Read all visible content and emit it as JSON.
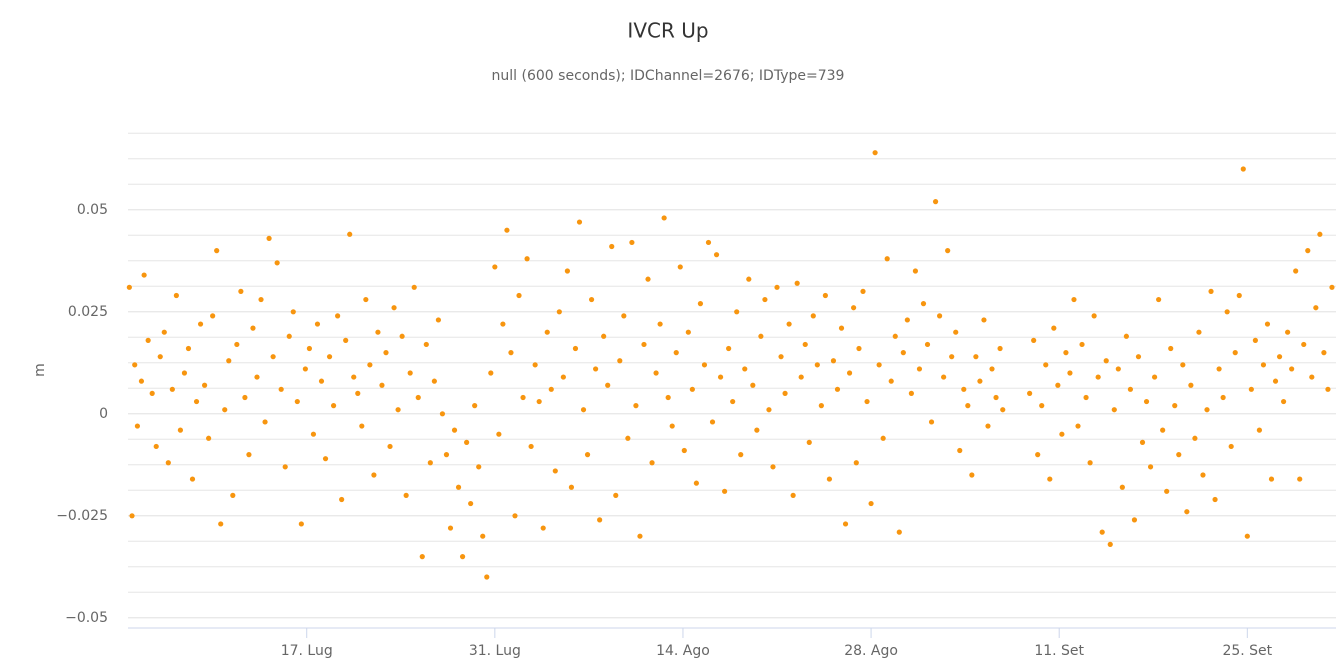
{
  "chart_data": {
    "type": "scatter",
    "title": "IVCR Up",
    "subtitle": "null (600 seconds); IDChannel=2676; IDType=739",
    "y_label": "m",
    "color": "#f7950f",
    "grid": true,
    "xlim": [
      -13.3,
      76.6
    ],
    "xticks": [
      {
        "value": 0,
        "label": "17. Lug"
      },
      {
        "value": 14,
        "label": "31. Lug"
      },
      {
        "value": 28,
        "label": "14. Ago"
      },
      {
        "value": 42,
        "label": "28. Ago"
      },
      {
        "value": 56,
        "label": "11. Set"
      },
      {
        "value": 70,
        "label": "25. Set"
      }
    ],
    "ylim": [
      -0.0525,
      0.0725
    ],
    "yticks": [
      {
        "value": -0.05,
        "label": "−0.05"
      },
      {
        "value": -0.025,
        "label": "−0.025"
      },
      0,
      0.025,
      0.05
    ],
    "y_minor_ticks": [
      -0.05,
      -0.04375,
      -0.0375,
      -0.03125,
      -0.025,
      -0.01875,
      -0.0125,
      -0.00625,
      0,
      0.00625,
      0.0125,
      0.01875,
      0.025,
      0.03125,
      0.0375,
      0.04375,
      0.05,
      0.05625,
      0.0625,
      0.06875
    ],
    "x": [
      -13.2,
      -13.0,
      -12.8,
      -12.6,
      -12.3,
      -12.1,
      -11.8,
      -11.5,
      -11.2,
      -10.9,
      -10.6,
      -10.3,
      -10.0,
      -9.7,
      -9.4,
      -9.1,
      -8.8,
      -8.5,
      -8.2,
      -7.9,
      -7.6,
      -7.3,
      -7.0,
      -6.7,
      -6.4,
      -6.1,
      -5.8,
      -5.5,
      -5.2,
      -4.9,
      -4.6,
      -4.3,
      -4.0,
      -3.7,
      -3.4,
      -3.1,
      -2.8,
      -2.5,
      -2.2,
      -1.9,
      -1.6,
      -1.3,
      -1.0,
      -0.7,
      -0.4,
      -0.1,
      0.2,
      0.5,
      0.8,
      1.1,
      1.4,
      1.7,
      2.0,
      2.3,
      2.6,
      2.9,
      3.2,
      3.5,
      3.8,
      4.1,
      4.4,
      4.7,
      5.0,
      5.3,
      5.6,
      5.9,
      6.2,
      6.5,
      6.8,
      7.1,
      7.4,
      7.7,
      8.0,
      8.3,
      8.6,
      8.9,
      9.2,
      9.5,
      9.8,
      10.1,
      10.4,
      10.7,
      11.0,
      11.3,
      11.6,
      11.9,
      12.2,
      12.5,
      12.8,
      13.1,
      13.4,
      13.7,
      14.0,
      14.3,
      14.6,
      14.9,
      15.2,
      15.5,
      15.8,
      16.1,
      16.4,
      16.7,
      17.0,
      17.3,
      17.6,
      17.9,
      18.2,
      18.5,
      18.8,
      19.1,
      19.4,
      19.7,
      20.0,
      20.3,
      20.6,
      20.9,
      21.2,
      21.5,
      21.8,
      22.1,
      22.4,
      22.7,
      23.0,
      23.3,
      23.6,
      23.9,
      24.2,
      24.5,
      24.8,
      25.1,
      25.4,
      25.7,
      26.0,
      26.3,
      26.6,
      26.9,
      27.2,
      27.5,
      27.8,
      28.1,
      28.4,
      28.7,
      29.0,
      29.3,
      29.6,
      29.9,
      30.2,
      30.5,
      30.8,
      31.1,
      31.4,
      31.7,
      32.0,
      32.3,
      32.6,
      32.9,
      33.2,
      33.5,
      33.8,
      34.1,
      34.4,
      34.7,
      35.0,
      35.3,
      35.6,
      35.9,
      36.2,
      36.5,
      36.8,
      37.1,
      37.4,
      37.7,
      38.0,
      38.3,
      38.6,
      38.9,
      39.2,
      39.5,
      39.8,
      40.1,
      40.4,
      40.7,
      40.9,
      41.1,
      41.4,
      41.7,
      42.0,
      42.3,
      42.6,
      42.9,
      43.2,
      43.5,
      43.8,
      44.1,
      44.4,
      44.7,
      45.0,
      45.3,
      45.6,
      45.9,
      46.2,
      46.5,
      46.8,
      47.1,
      47.4,
      47.7,
      48.0,
      48.3,
      48.6,
      48.9,
      49.2,
      49.5,
      49.8,
      50.1,
      50.4,
      50.7,
      51.0,
      51.3,
      51.6,
      51.8,
      53.8,
      54.1,
      54.4,
      54.7,
      55.0,
      55.3,
      55.6,
      55.9,
      56.2,
      56.5,
      56.8,
      57.1,
      57.4,
      57.7,
      58.0,
      58.3,
      58.6,
      58.9,
      59.2,
      59.5,
      59.8,
      60.1,
      60.4,
      60.7,
      61.0,
      61.3,
      61.6,
      61.9,
      62.2,
      62.5,
      62.8,
      63.1,
      63.4,
      63.7,
      64.0,
      64.3,
      64.6,
      64.9,
      65.2,
      65.5,
      65.8,
      66.1,
      66.4,
      66.7,
      67.0,
      67.3,
      67.6,
      67.9,
      68.2,
      68.5,
      68.8,
      69.1,
      69.4,
      69.7,
      70.0,
      70.3,
      70.6,
      70.9,
      71.2,
      71.5,
      71.8,
      72.1,
      72.4,
      72.7,
      73.0,
      73.3,
      73.6,
      73.9,
      74.2,
      74.5,
      74.8,
      75.1,
      75.4,
      75.7,
      76.0,
      76.3
    ],
    "values": [
      0.031,
      -0.025,
      0.012,
      -0.003,
      0.008,
      0.034,
      0.018,
      0.005,
      -0.008,
      0.014,
      0.02,
      -0.012,
      0.006,
      0.029,
      -0.004,
      0.01,
      0.016,
      -0.016,
      0.003,
      0.022,
      0.007,
      -0.006,
      0.024,
      0.04,
      -0.027,
      0.001,
      0.013,
      -0.02,
      0.017,
      0.03,
      0.004,
      -0.01,
      0.021,
      0.009,
      0.028,
      -0.002,
      0.043,
      0.014,
      0.037,
      0.006,
      -0.013,
      0.019,
      0.025,
      0.003,
      -0.027,
      0.011,
      0.016,
      -0.005,
      0.022,
      0.008,
      -0.011,
      0.014,
      0.002,
      0.024,
      -0.021,
      0.018,
      0.044,
      0.009,
      0.005,
      -0.003,
      0.028,
      0.012,
      -0.015,
      0.02,
      0.007,
      0.015,
      -0.008,
      0.026,
      0.001,
      0.019,
      -0.02,
      0.01,
      0.031,
      0.004,
      -0.035,
      0.017,
      -0.012,
      0.008,
      0.023,
      0.0,
      -0.01,
      -0.028,
      -0.004,
      -0.018,
      -0.035,
      -0.007,
      -0.022,
      0.002,
      -0.013,
      -0.03,
      -0.04,
      0.01,
      0.036,
      -0.005,
      0.022,
      0.045,
      0.015,
      -0.025,
      0.029,
      0.004,
      0.038,
      -0.008,
      0.012,
      0.003,
      -0.028,
      0.02,
      0.006,
      -0.014,
      0.025,
      0.009,
      0.035,
      -0.018,
      0.016,
      0.047,
      0.001,
      -0.01,
      0.028,
      0.011,
      -0.026,
      0.019,
      0.007,
      0.041,
      -0.02,
      0.013,
      0.024,
      -0.006,
      0.042,
      0.002,
      -0.03,
      0.017,
      0.033,
      -0.012,
      0.01,
      0.022,
      0.048,
      0.004,
      -0.003,
      0.015,
      0.036,
      -0.009,
      0.02,
      0.006,
      -0.017,
      0.027,
      0.012,
      0.042,
      -0.002,
      0.039,
      0.009,
      -0.019,
      0.016,
      0.003,
      0.025,
      -0.01,
      0.011,
      0.033,
      0.007,
      -0.004,
      0.019,
      0.028,
      0.001,
      -0.013,
      0.031,
      0.014,
      0.005,
      0.022,
      -0.02,
      0.032,
      0.009,
      0.017,
      -0.007,
      0.024,
      0.012,
      0.002,
      0.029,
      -0.016,
      0.013,
      0.006,
      0.021,
      -0.027,
      0.01,
      0.026,
      -0.012,
      0.016,
      0.03,
      0.003,
      -0.022,
      0.064,
      0.012,
      -0.006,
      0.038,
      0.008,
      0.019,
      -0.029,
      0.015,
      0.023,
      0.005,
      0.035,
      0.011,
      0.027,
      0.017,
      -0.002,
      0.052,
      0.024,
      0.009,
      0.04,
      0.014,
      0.02,
      -0.009,
      0.006,
      0.002,
      -0.015,
      0.014,
      0.008,
      0.023,
      -0.003,
      0.011,
      0.004,
      0.016,
      0.001,
      0.005,
      0.018,
      -0.01,
      0.002,
      0.012,
      -0.016,
      0.021,
      0.007,
      -0.005,
      0.015,
      0.01,
      0.028,
      -0.003,
      0.017,
      0.004,
      -0.012,
      0.024,
      0.009,
      -0.029,
      0.013,
      -0.032,
      0.001,
      0.011,
      -0.018,
      0.019,
      0.006,
      -0.026,
      0.014,
      -0.007,
      0.003,
      -0.013,
      0.009,
      0.028,
      -0.004,
      -0.019,
      0.016,
      0.002,
      -0.01,
      0.012,
      -0.024,
      0.007,
      -0.006,
      0.02,
      -0.015,
      0.001,
      0.03,
      -0.021,
      0.011,
      0.004,
      0.025,
      -0.008,
      0.015,
      0.029,
      0.06,
      -0.03,
      0.006,
      0.018,
      -0.004,
      0.012,
      0.022,
      -0.016,
      0.008,
      0.014,
      0.003,
      0.02,
      0.011,
      0.035,
      -0.016,
      0.017,
      0.04,
      0.009,
      0.026,
      0.044,
      0.015,
      0.006,
      0.031
    ]
  }
}
